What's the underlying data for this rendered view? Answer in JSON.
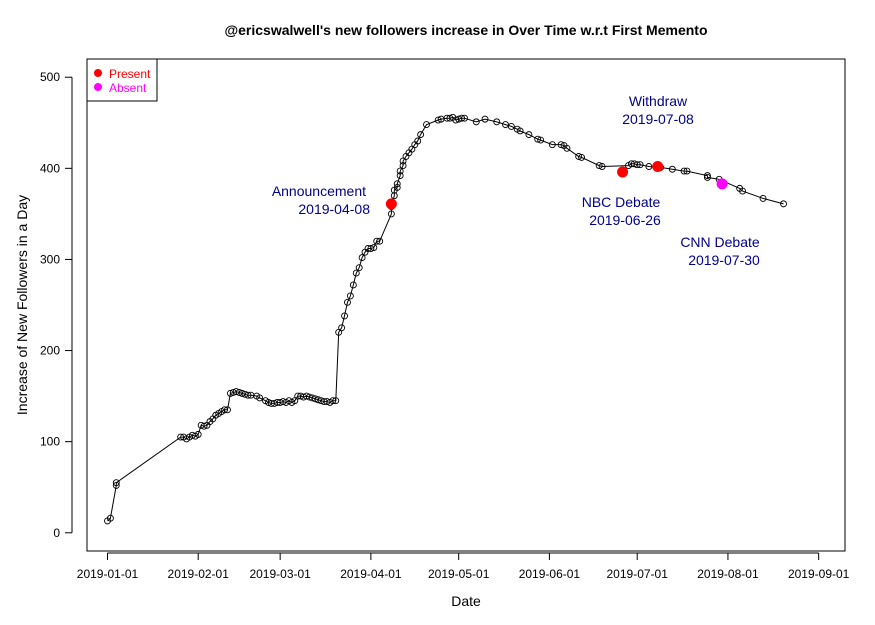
{
  "chart_data": {
    "type": "scatter",
    "title": "@ericswalwell's new followers increase in Over Time w.r.t First Memento",
    "xlabel": "Date",
    "ylabel": "Increase of New Followers in a Day",
    "xlim": [
      "2018-12-25",
      "2019-09-10"
    ],
    "ylim": [
      -20,
      520
    ],
    "x_ticks": [
      "2019-01-01",
      "2019-02-01",
      "2019-03-01",
      "2019-04-01",
      "2019-05-01",
      "2019-06-01",
      "2019-07-01",
      "2019-08-01",
      "2019-09-01"
    ],
    "y_ticks": [
      0,
      100,
      200,
      300,
      400,
      500
    ],
    "grid": false,
    "series": [
      {
        "style": "line-with-open-circles",
        "color": "#000000",
        "points": [
          [
            "2019-01-01",
            13
          ],
          [
            "2019-01-02",
            16
          ],
          [
            "2019-01-04",
            52
          ],
          [
            "2019-01-04",
            55
          ],
          [
            "2019-01-26",
            105
          ],
          [
            "2019-01-27",
            105
          ],
          [
            "2019-01-28",
            103
          ],
          [
            "2019-01-29",
            105
          ],
          [
            "2019-01-30",
            107
          ],
          [
            "2019-01-31",
            106
          ],
          [
            "2019-02-01",
            108
          ],
          [
            "2019-02-02",
            118
          ],
          [
            "2019-02-03",
            117
          ],
          [
            "2019-02-04",
            118
          ],
          [
            "2019-02-05",
            122
          ],
          [
            "2019-02-06",
            125
          ],
          [
            "2019-02-07",
            129
          ],
          [
            "2019-02-08",
            131
          ],
          [
            "2019-02-09",
            133
          ],
          [
            "2019-02-10",
            135
          ],
          [
            "2019-02-11",
            135
          ],
          [
            "2019-02-12",
            153
          ],
          [
            "2019-02-13",
            154
          ],
          [
            "2019-02-14",
            155
          ],
          [
            "2019-02-15",
            154
          ],
          [
            "2019-02-16",
            153
          ],
          [
            "2019-02-17",
            152
          ],
          [
            "2019-02-18",
            151
          ],
          [
            "2019-02-19",
            151
          ],
          [
            "2019-02-21",
            150
          ],
          [
            "2019-02-22",
            148
          ],
          [
            "2019-02-24",
            145
          ],
          [
            "2019-02-25",
            143
          ],
          [
            "2019-02-26",
            142
          ],
          [
            "2019-02-27",
            142
          ],
          [
            "2019-02-28",
            143
          ],
          [
            "2019-03-01",
            143
          ],
          [
            "2019-03-02",
            144
          ],
          [
            "2019-03-03",
            143
          ],
          [
            "2019-03-04",
            145
          ],
          [
            "2019-03-05",
            143
          ],
          [
            "2019-03-06",
            145
          ],
          [
            "2019-03-07",
            150
          ],
          [
            "2019-03-08",
            150
          ],
          [
            "2019-03-09",
            149
          ],
          [
            "2019-03-10",
            150
          ],
          [
            "2019-03-11",
            149
          ],
          [
            "2019-03-12",
            148
          ],
          [
            "2019-03-13",
            147
          ],
          [
            "2019-03-14",
            146
          ],
          [
            "2019-03-15",
            145
          ],
          [
            "2019-03-16",
            144
          ],
          [
            "2019-03-17",
            144
          ],
          [
            "2019-03-18",
            143
          ],
          [
            "2019-03-19",
            145
          ],
          [
            "2019-03-20",
            145
          ],
          [
            "2019-03-21",
            220
          ],
          [
            "2019-03-22",
            225
          ],
          [
            "2019-03-23",
            238
          ],
          [
            "2019-03-24",
            253
          ],
          [
            "2019-03-25",
            260
          ],
          [
            "2019-03-26",
            272
          ],
          [
            "2019-03-27",
            285
          ],
          [
            "2019-03-28",
            291
          ],
          [
            "2019-03-29",
            302
          ],
          [
            "2019-03-30",
            308
          ],
          [
            "2019-03-31",
            312
          ],
          [
            "2019-04-01",
            312
          ],
          [
            "2019-04-02",
            313
          ],
          [
            "2019-04-03",
            320
          ],
          [
            "2019-04-04",
            320
          ],
          [
            "2019-04-08",
            350
          ],
          [
            "2019-04-08",
            358
          ],
          [
            "2019-04-09",
            370
          ],
          [
            "2019-04-09",
            376
          ],
          [
            "2019-04-10",
            379
          ],
          [
            "2019-04-10",
            383
          ],
          [
            "2019-04-11",
            392
          ],
          [
            "2019-04-11",
            397
          ],
          [
            "2019-04-12",
            403
          ],
          [
            "2019-04-12",
            408
          ],
          [
            "2019-04-13",
            413
          ],
          [
            "2019-04-14",
            417
          ],
          [
            "2019-04-15",
            421
          ],
          [
            "2019-04-16",
            426
          ],
          [
            "2019-04-17",
            430
          ],
          [
            "2019-04-18",
            437
          ],
          [
            "2019-04-20",
            448
          ],
          [
            "2019-04-24",
            453
          ],
          [
            "2019-04-25",
            454
          ],
          [
            "2019-04-27",
            455
          ],
          [
            "2019-04-28",
            455
          ],
          [
            "2019-04-29",
            456
          ],
          [
            "2019-04-30",
            453
          ],
          [
            "2019-05-01",
            454
          ],
          [
            "2019-05-02",
            455
          ],
          [
            "2019-05-03",
            455
          ],
          [
            "2019-05-07",
            451
          ],
          [
            "2019-05-10",
            454
          ],
          [
            "2019-05-14",
            451
          ],
          [
            "2019-05-17",
            448
          ],
          [
            "2019-05-19",
            446
          ],
          [
            "2019-05-21",
            443
          ],
          [
            "2019-05-22",
            441
          ],
          [
            "2019-05-25",
            437
          ],
          [
            "2019-05-28",
            432
          ],
          [
            "2019-05-29",
            431
          ],
          [
            "2019-06-02",
            426
          ],
          [
            "2019-06-05",
            426
          ],
          [
            "2019-06-06",
            425
          ],
          [
            "2019-06-07",
            422
          ],
          [
            "2019-06-11",
            413
          ],
          [
            "2019-06-12",
            412
          ],
          [
            "2019-06-18",
            403
          ],
          [
            "2019-06-19",
            402
          ],
          [
            "2019-06-28",
            403
          ],
          [
            "2019-06-29",
            405
          ],
          [
            "2019-06-30",
            405
          ],
          [
            "2019-07-01",
            404
          ],
          [
            "2019-07-02",
            404
          ],
          [
            "2019-07-05",
            402
          ],
          [
            "2019-07-08",
            401
          ],
          [
            "2019-07-09",
            401
          ],
          [
            "2019-07-13",
            399
          ],
          [
            "2019-07-17",
            397
          ],
          [
            "2019-07-18",
            397
          ],
          [
            "2019-07-25",
            392
          ],
          [
            "2019-07-25",
            390
          ],
          [
            "2019-07-29",
            388
          ],
          [
            "2019-08-05",
            378
          ],
          [
            "2019-08-06",
            375
          ],
          [
            "2019-08-13",
            367
          ],
          [
            "2019-08-20",
            361
          ]
        ]
      }
    ],
    "highlighted_points": [
      {
        "x": "2019-04-08",
        "y": 361,
        "status": "Present",
        "color": "#ff0000"
      },
      {
        "x": "2019-06-26",
        "y": 396,
        "status": "Present",
        "color": "#ff0000"
      },
      {
        "x": "2019-07-08",
        "y": 402,
        "status": "Present",
        "color": "#ff0000"
      },
      {
        "x": "2019-07-30",
        "y": 383,
        "status": "Absent",
        "color": "#ff00ff"
      }
    ],
    "legend": {
      "placement": "top-left",
      "entries": [
        {
          "label": "Present",
          "color": "#ff0000"
        },
        {
          "label": "Absent",
          "color": "#ff00ff"
        }
      ]
    },
    "annotations": [
      {
        "line1": "Announcement",
        "line2": "2019-04-08",
        "color": "#00008b"
      },
      {
        "line1": "NBC Debate",
        "line2": "2019-06-26",
        "color": "#00008b"
      },
      {
        "line1": "Withdraw",
        "line2": "2019-07-08",
        "color": "#00008b"
      },
      {
        "line1": "CNN Debate",
        "line2": "2019-07-30",
        "color": "#00008b"
      }
    ]
  }
}
